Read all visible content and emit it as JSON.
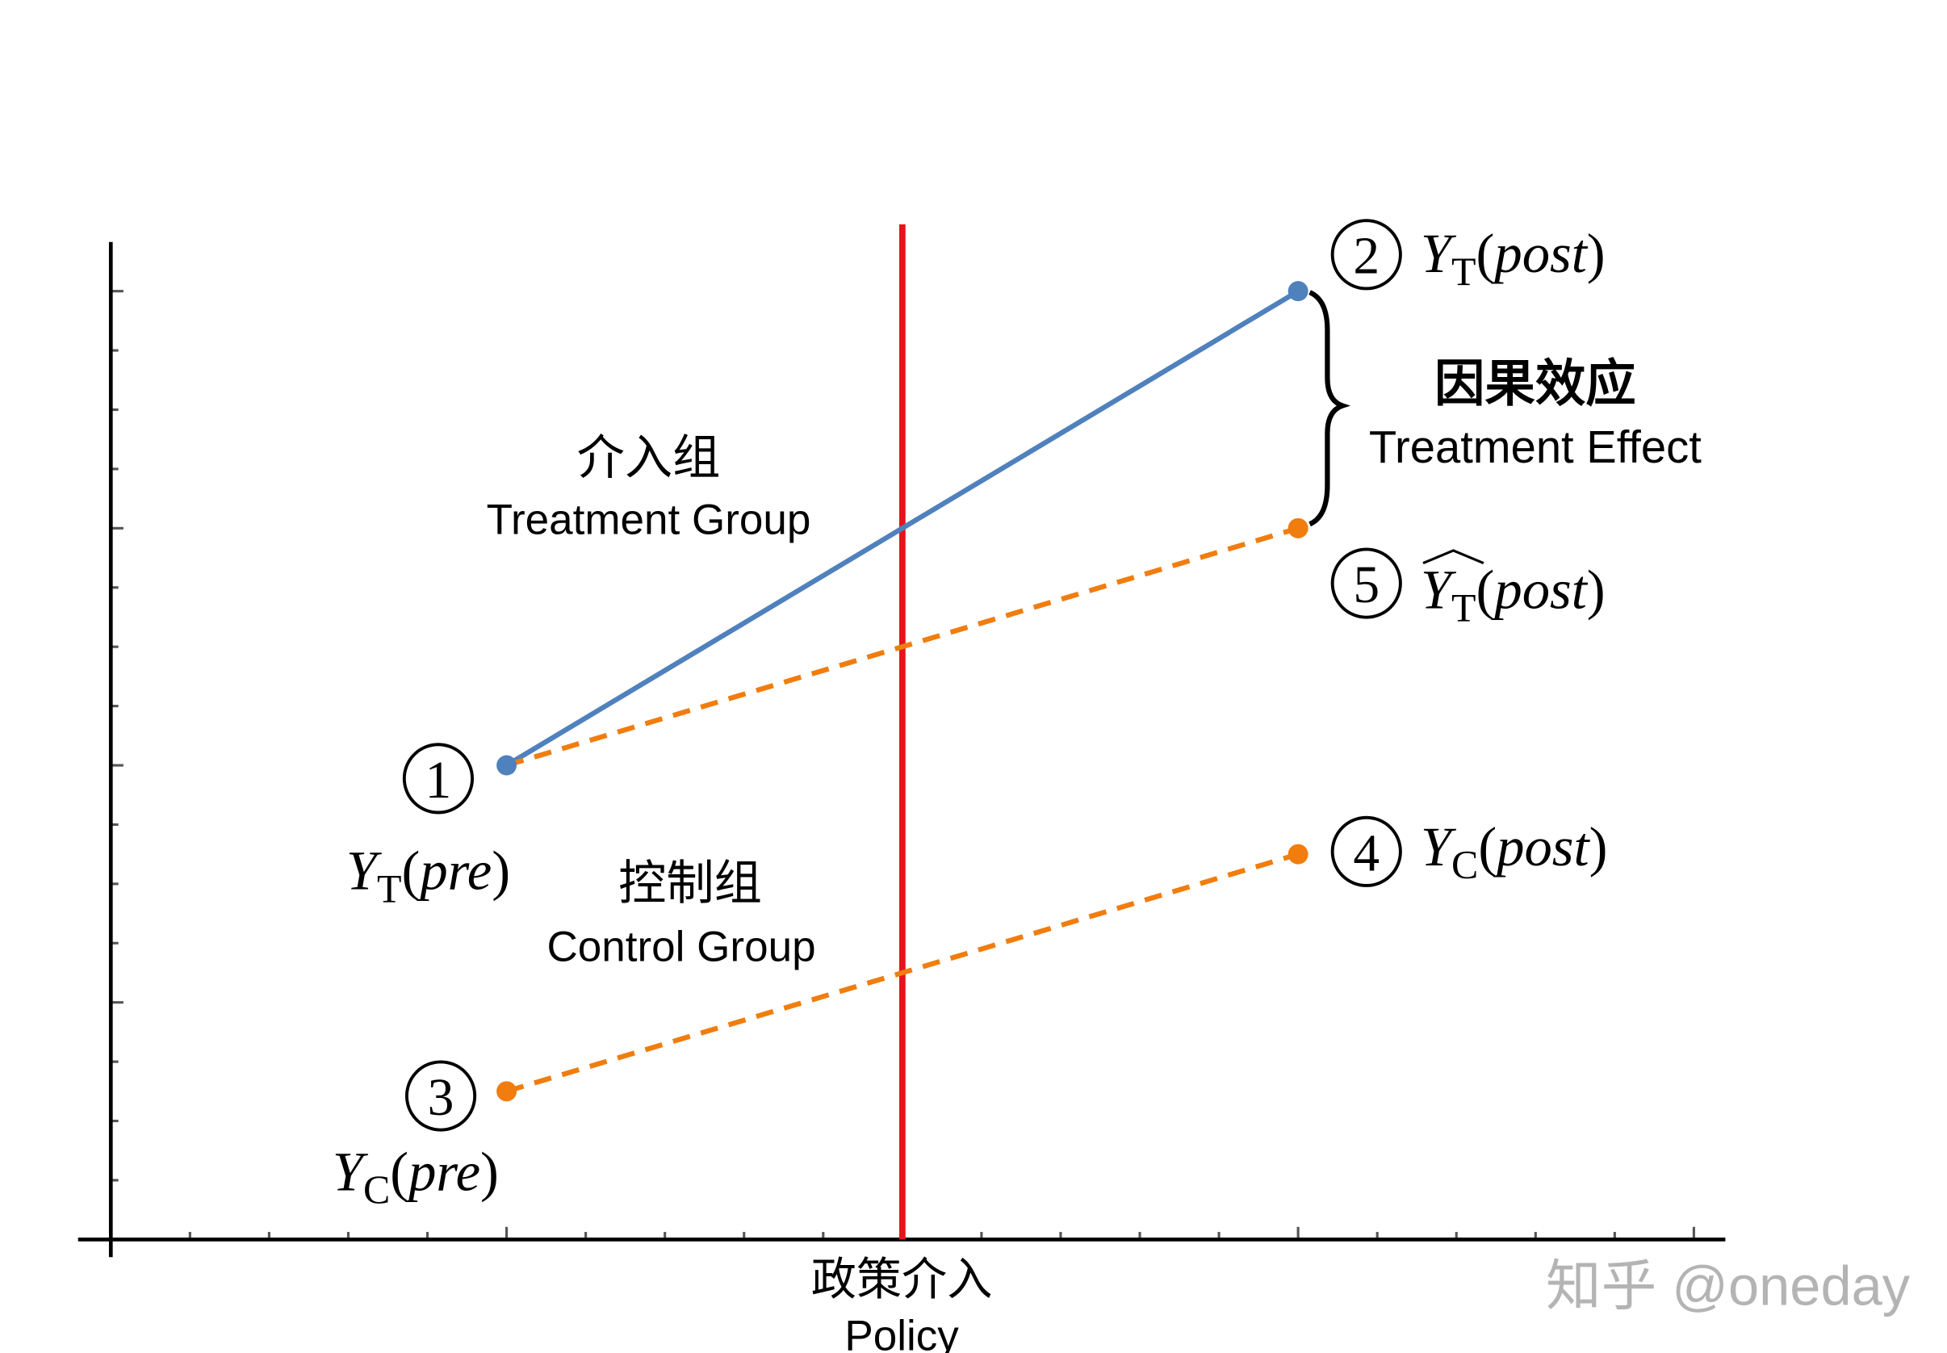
{
  "colors": {
    "treatment": "#4f81bd",
    "counterfactual": "#f07d0e",
    "control": "#f07d0e",
    "policy_line": "#e8141b",
    "axis": "#000000",
    "watermark": "#b4b4b4"
  },
  "axes": {
    "x_range": [
      0,
      20
    ],
    "y_range": [
      0,
      16
    ],
    "x_major_every": 5,
    "y_major_every": 4,
    "tick_labels_shown": false
  },
  "policy": {
    "x": 10,
    "label_cn": "政策介入",
    "label_en": "Policy"
  },
  "points": [
    {
      "id": "1",
      "x": 5,
      "y": 8,
      "series": "treatment",
      "var": "Y",
      "sub": "T",
      "arg": "pre",
      "hat": false
    },
    {
      "id": "2",
      "x": 15,
      "y": 16,
      "series": "treatment",
      "var": "Y",
      "sub": "T",
      "arg": "post",
      "hat": false
    },
    {
      "id": "3",
      "x": 5,
      "y": 2.5,
      "series": "control",
      "var": "Y",
      "sub": "C",
      "arg": "pre",
      "hat": false
    },
    {
      "id": "4",
      "x": 15,
      "y": 6.5,
      "series": "control",
      "var": "Y",
      "sub": "C",
      "arg": "post",
      "hat": false
    },
    {
      "id": "5",
      "x": 15,
      "y": 12,
      "series": "counterfactual",
      "var": "Y",
      "sub": "T",
      "arg": "post",
      "hat": true
    }
  ],
  "segments": [
    {
      "from": "1",
      "to": "2",
      "style": "solid",
      "series": "treatment"
    },
    {
      "from": "1",
      "to": "5",
      "style": "dashed",
      "series": "counterfactual"
    },
    {
      "from": "3",
      "to": "4",
      "style": "dashed",
      "series": "control"
    }
  ],
  "labels": {
    "treatment_cn": "介入组",
    "treatment_en": "Treatment Group",
    "control_cn": "控制组",
    "control_en": "Control Group",
    "effect_cn": "因果效应",
    "effect_en": "Treatment Effect"
  },
  "point_markers": {
    "1": "①",
    "2": "②",
    "3": "③",
    "4": "④",
    "5": "⑤"
  },
  "watermark": "知乎 @oneday"
}
